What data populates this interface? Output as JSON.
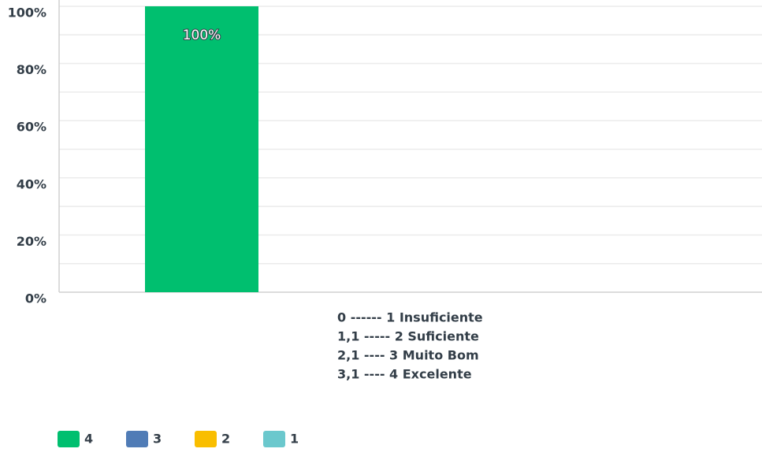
{
  "chart_data": {
    "type": "bar",
    "categories": [
      [
        "0 ------ 1 Insuficiente",
        "1,1 ----- 2 Suficiente",
        "2,1 ---- 3 Muito Bom",
        "3,1 ---- 4 Excelente"
      ]
    ],
    "series": [
      {
        "name": "4",
        "color": "#00bf6f",
        "values": [
          100
        ],
        "value_labels": [
          "100%"
        ]
      },
      {
        "name": "3",
        "color": "#507cb6",
        "values": [
          0
        ]
      },
      {
        "name": "2",
        "color": "#f9be00",
        "values": [
          0
        ]
      },
      {
        "name": "1",
        "color": "#6bc8cd",
        "values": [
          0
        ]
      }
    ],
    "ylim": [
      0,
      100
    ],
    "yticks": [
      {
        "value": 0,
        "label": "0%"
      },
      {
        "value": 20,
        "label": "20%"
      },
      {
        "value": 40,
        "label": "40%"
      },
      {
        "value": 60,
        "label": "60%"
      },
      {
        "value": 80,
        "label": "80%"
      },
      {
        "value": 100,
        "label": "100%"
      }
    ],
    "minor_yticks": [
      10,
      30,
      50,
      70,
      90
    ],
    "grid": true,
    "legend": "bottom-left"
  }
}
